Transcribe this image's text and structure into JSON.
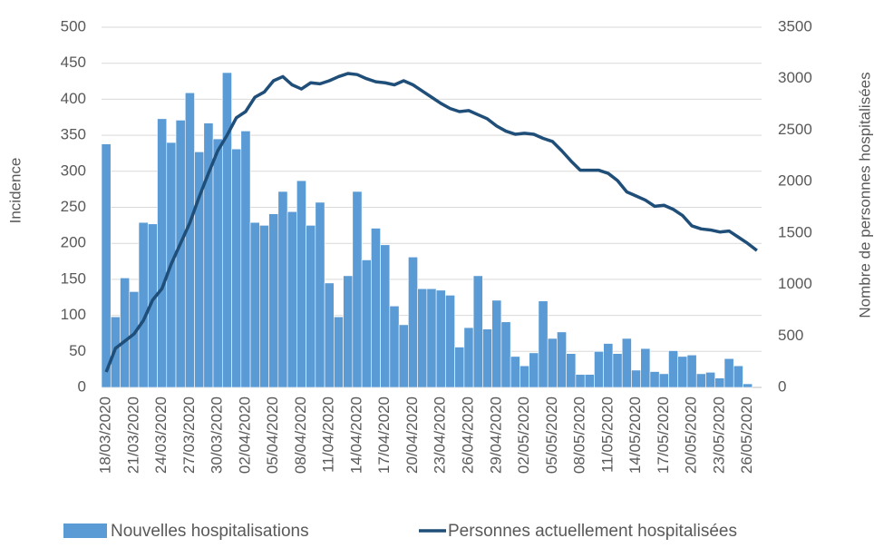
{
  "chart_data": {
    "type": "bar-line",
    "categories": [
      "18/03/2020",
      null,
      null,
      "21/03/2020",
      null,
      null,
      "24/03/2020",
      null,
      null,
      "27/03/2020",
      null,
      null,
      "30/03/2020",
      null,
      null,
      "02/04/2020",
      null,
      null,
      "05/04/2020",
      null,
      null,
      "08/04/2020",
      null,
      null,
      "11/04/2020",
      null,
      null,
      "14/04/2020",
      null,
      null,
      "17/04/2020",
      null,
      null,
      "20/04/2020",
      null,
      null,
      "23/04/2020",
      null,
      null,
      "26/04/2020",
      null,
      null,
      "29/04/2020",
      null,
      null,
      "02/05/2020",
      null,
      null,
      "05/05/2020",
      null,
      null,
      "08/05/2020",
      null,
      null,
      "11/05/2020",
      null,
      null,
      "14/05/2020",
      null,
      null,
      "17/05/2020",
      null,
      null,
      "20/05/2020",
      null,
      null,
      "23/05/2020",
      null,
      null,
      "26/05/2020",
      null
    ],
    "series": [
      {
        "name": "Nouvelles hospitalisations",
        "color": "#5b9bd5",
        "kind": "bar",
        "values": [
          338,
          98,
          152,
          133,
          229,
          227,
          373,
          340,
          371,
          409,
          327,
          367,
          345,
          437,
          331,
          356,
          229,
          225,
          241,
          272,
          244,
          287,
          225,
          257,
          145,
          98,
          155,
          272,
          177,
          221,
          198,
          113,
          87,
          181,
          137,
          137,
          135,
          128,
          56,
          83,
          155,
          81,
          121,
          91,
          43,
          30,
          48,
          120,
          68,
          77,
          47,
          18,
          18,
          50,
          61,
          47,
          68,
          24,
          54,
          22,
          19,
          51,
          43,
          45,
          19,
          21,
          13,
          40,
          30,
          5,
          null
        ]
      },
      {
        "name": "Personnes actuellement hospitalisées",
        "color": "#1f4e79",
        "kind": "line",
        "axis": "y2",
        "values": [
          150,
          380,
          450,
          520,
          650,
          850,
          960,
          1200,
          1400,
          1600,
          1850,
          2080,
          2300,
          2450,
          2620,
          2680,
          2820,
          2870,
          2980,
          3020,
          2940,
          2900,
          2960,
          2950,
          2980,
          3020,
          3050,
          3040,
          3000,
          2970,
          2960,
          2940,
          2980,
          2940,
          2880,
          2820,
          2760,
          2710,
          2680,
          2690,
          2650,
          2610,
          2540,
          2490,
          2460,
          2470,
          2460,
          2420,
          2390,
          2300,
          2200,
          2110,
          2110,
          2110,
          2080,
          2010,
          1900,
          1860,
          1820,
          1760,
          1770,
          1730,
          1670,
          1570,
          1540,
          1530,
          1510,
          1520,
          1460,
          1400,
          1330
        ]
      }
    ],
    "y_label": "Incidence",
    "y2_label": "Nombre de personnes hospitalisées",
    "ylim": [
      0,
      500
    ],
    "yticks": [
      0,
      50,
      100,
      150,
      200,
      250,
      300,
      350,
      400,
      450,
      500
    ],
    "y2lim": [
      0,
      3500
    ],
    "y2ticks": [
      0,
      500,
      1000,
      1500,
      2000,
      2500,
      3000,
      3500
    ],
    "grid": true,
    "legend": "bottom"
  }
}
